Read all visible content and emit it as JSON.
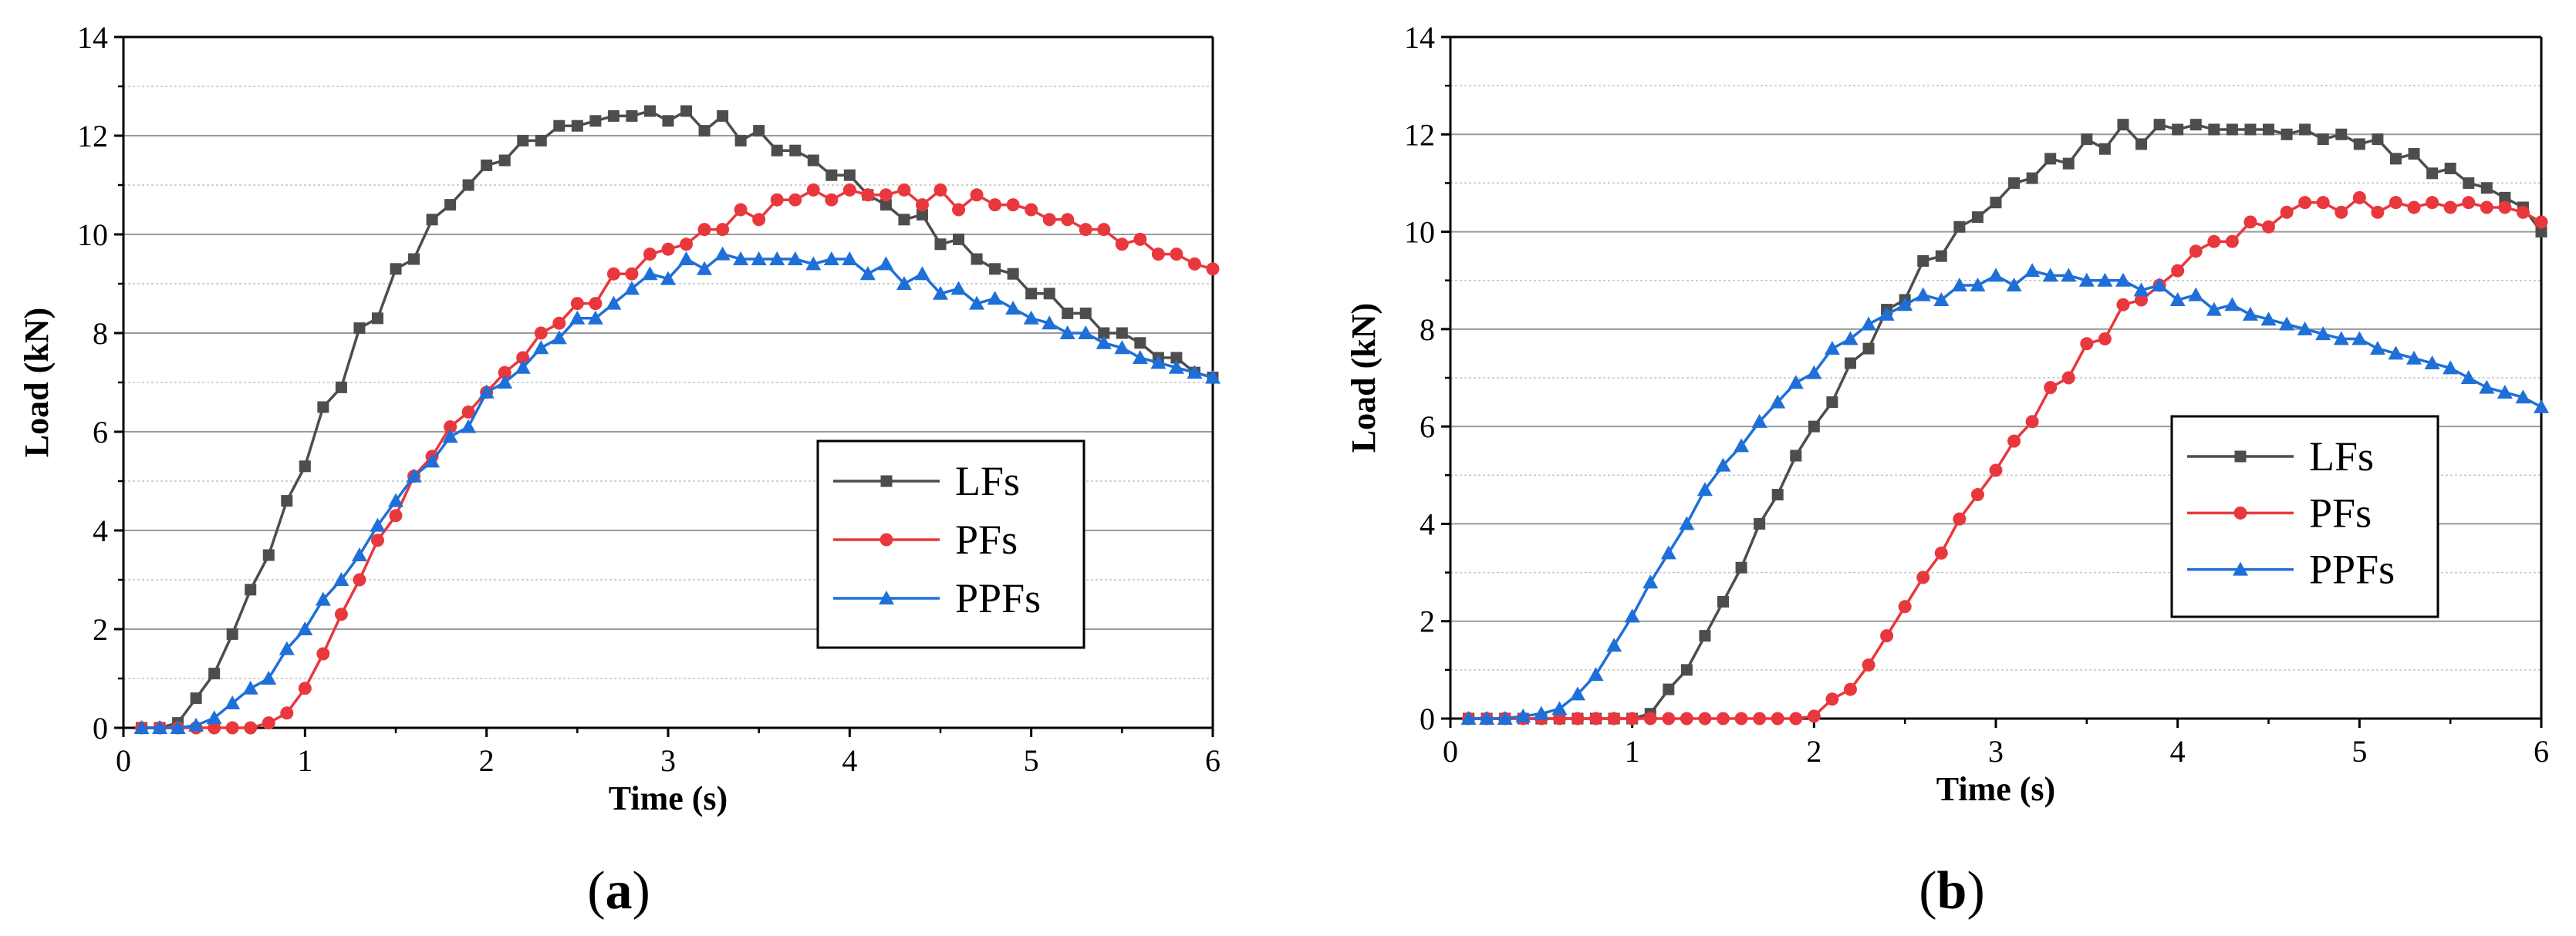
{
  "chart_data": [
    {
      "type": "line",
      "panel_label": "a",
      "xlabel": "Time (s)",
      "ylabel": "Load (kN)",
      "xlim": [
        0,
        6
      ],
      "ylim": [
        0,
        14
      ],
      "x_ticks": [
        "0",
        "1",
        "2",
        "3",
        "4",
        "5",
        "6"
      ],
      "y_ticks": [
        "0",
        "2",
        "4",
        "6",
        "8",
        "10",
        "12",
        "14"
      ],
      "grid": true,
      "legend_position": "center-right",
      "series": [
        {
          "name": "LFs",
          "color": "#4d4d4d",
          "marker": "square",
          "x": [
            0.1,
            0.2,
            0.3,
            0.4,
            0.5,
            0.6,
            0.7,
            0.8,
            0.9,
            1.0,
            1.1,
            1.2,
            1.3,
            1.4,
            1.5,
            1.6,
            1.7,
            1.8,
            1.9,
            2.0,
            2.1,
            2.2,
            2.3,
            2.4,
            2.5,
            2.6,
            2.7,
            2.8,
            2.9,
            3.0,
            3.1,
            3.2,
            3.3,
            3.4,
            3.5,
            3.6,
            3.7,
            3.8,
            3.9,
            4.0,
            4.1,
            4.2,
            4.3,
            4.4,
            4.5,
            4.6,
            4.7,
            4.8,
            4.9,
            5.0,
            5.1,
            5.2,
            5.3,
            5.4,
            5.5,
            5.6,
            5.7,
            5.8,
            5.9,
            6.0
          ],
          "y": [
            0,
            0,
            0.1,
            0.6,
            1.1,
            1.9,
            2.8,
            3.5,
            4.6,
            5.3,
            6.5,
            6.9,
            8.1,
            8.3,
            9.3,
            9.5,
            10.3,
            10.6,
            11.0,
            11.4,
            11.5,
            11.9,
            11.9,
            12.2,
            12.2,
            12.3,
            12.4,
            12.4,
            12.5,
            12.3,
            12.5,
            12.1,
            12.4,
            11.9,
            12.1,
            11.7,
            11.7,
            11.5,
            11.2,
            11.2,
            10.8,
            10.6,
            10.3,
            10.4,
            9.8,
            9.9,
            9.5,
            9.3,
            9.2,
            8.8,
            8.8,
            8.4,
            8.4,
            8.0,
            8.0,
            7.8,
            7.5,
            7.5,
            7.2,
            7.1
          ]
        },
        {
          "name": "PFs",
          "color": "#e8383d",
          "marker": "circle",
          "x": [
            0.1,
            0.2,
            0.3,
            0.4,
            0.5,
            0.6,
            0.7,
            0.8,
            0.9,
            1.0,
            1.1,
            1.2,
            1.3,
            1.4,
            1.5,
            1.6,
            1.7,
            1.8,
            1.9,
            2.0,
            2.1,
            2.2,
            2.3,
            2.4,
            2.5,
            2.6,
            2.7,
            2.8,
            2.9,
            3.0,
            3.1,
            3.2,
            3.3,
            3.4,
            3.5,
            3.6,
            3.7,
            3.8,
            3.9,
            4.0,
            4.1,
            4.2,
            4.3,
            4.4,
            4.5,
            4.6,
            4.7,
            4.8,
            4.9,
            5.0,
            5.1,
            5.2,
            5.3,
            5.4,
            5.5,
            5.6,
            5.7,
            5.8,
            5.9,
            6.0
          ],
          "y": [
            0,
            0,
            0,
            0,
            0,
            0,
            0,
            0.1,
            0.3,
            0.8,
            1.5,
            2.3,
            3.0,
            3.8,
            4.3,
            5.1,
            5.5,
            6.1,
            6.4,
            6.8,
            7.2,
            7.5,
            8.0,
            8.2,
            8.6,
            8.6,
            9.2,
            9.2,
            9.6,
            9.7,
            9.8,
            10.1,
            10.1,
            10.5,
            10.3,
            10.7,
            10.7,
            10.9,
            10.7,
            10.9,
            10.8,
            10.8,
            10.9,
            10.6,
            10.9,
            10.5,
            10.8,
            10.6,
            10.6,
            10.5,
            10.3,
            10.3,
            10.1,
            10.1,
            9.8,
            9.9,
            9.6,
            9.6,
            9.4,
            9.3
          ]
        },
        {
          "name": "PPFs",
          "color": "#1f6fd8",
          "marker": "triangle",
          "x": [
            0.1,
            0.2,
            0.3,
            0.4,
            0.5,
            0.6,
            0.7,
            0.8,
            0.9,
            1.0,
            1.1,
            1.2,
            1.3,
            1.4,
            1.5,
            1.6,
            1.7,
            1.8,
            1.9,
            2.0,
            2.1,
            2.2,
            2.3,
            2.4,
            2.5,
            2.6,
            2.7,
            2.8,
            2.9,
            3.0,
            3.1,
            3.2,
            3.3,
            3.4,
            3.5,
            3.6,
            3.7,
            3.8,
            3.9,
            4.0,
            4.1,
            4.2,
            4.3,
            4.4,
            4.5,
            4.6,
            4.7,
            4.8,
            4.9,
            5.0,
            5.1,
            5.2,
            5.3,
            5.4,
            5.5,
            5.6,
            5.7,
            5.8,
            5.9,
            6.0
          ],
          "y": [
            0,
            0,
            0,
            0.05,
            0.2,
            0.5,
            0.8,
            1.0,
            1.6,
            2.0,
            2.6,
            3.0,
            3.5,
            4.1,
            4.6,
            5.1,
            5.4,
            5.9,
            6.1,
            6.8,
            7.0,
            7.3,
            7.7,
            7.9,
            8.3,
            8.3,
            8.6,
            8.9,
            9.2,
            9.1,
            9.5,
            9.3,
            9.6,
            9.5,
            9.5,
            9.5,
            9.5,
            9.4,
            9.5,
            9.5,
            9.2,
            9.4,
            9.0,
            9.2,
            8.8,
            8.9,
            8.6,
            8.7,
            8.5,
            8.3,
            8.2,
            8.0,
            8.0,
            7.8,
            7.7,
            7.5,
            7.4,
            7.3,
            7.2,
            7.1
          ]
        }
      ]
    },
    {
      "type": "line",
      "panel_label": "b",
      "xlabel": "Time (s)",
      "ylabel": "Load (kN)",
      "xlim": [
        0,
        6
      ],
      "ylim": [
        0,
        14
      ],
      "x_ticks": [
        "0",
        "1",
        "2",
        "3",
        "4",
        "5",
        "6"
      ],
      "y_ticks": [
        "0",
        "2",
        "4",
        "6",
        "8",
        "10",
        "12",
        "14"
      ],
      "grid": true,
      "legend_position": "center-right",
      "series": [
        {
          "name": "LFs",
          "color": "#4d4d4d",
          "marker": "square",
          "x": [
            0.1,
            0.2,
            0.3,
            0.4,
            0.5,
            0.6,
            0.7,
            0.8,
            0.9,
            1.0,
            1.1,
            1.2,
            1.3,
            1.4,
            1.5,
            1.6,
            1.7,
            1.8,
            1.9,
            2.0,
            2.1,
            2.2,
            2.3,
            2.4,
            2.5,
            2.6,
            2.7,
            2.8,
            2.9,
            3.0,
            3.1,
            3.2,
            3.3,
            3.4,
            3.5,
            3.6,
            3.7,
            3.8,
            3.9,
            4.0,
            4.1,
            4.2,
            4.3,
            4.4,
            4.5,
            4.6,
            4.7,
            4.8,
            4.9,
            5.0,
            5.1,
            5.2,
            5.3,
            5.4,
            5.5,
            5.6,
            5.7,
            5.8,
            5.9,
            6.0
          ],
          "y": [
            0,
            0,
            0,
            0,
            0,
            0,
            0,
            0,
            0,
            0,
            0.1,
            0.6,
            1.0,
            1.7,
            2.4,
            3.1,
            4.0,
            4.6,
            5.4,
            6.0,
            6.5,
            7.3,
            7.6,
            8.4,
            8.6,
            9.4,
            9.5,
            10.1,
            10.3,
            10.6,
            11.0,
            11.1,
            11.5,
            11.4,
            11.9,
            11.7,
            12.2,
            11.8,
            12.2,
            12.1,
            12.2,
            12.1,
            12.1,
            12.1,
            12.1,
            12.0,
            12.1,
            11.9,
            12.0,
            11.8,
            11.9,
            11.5,
            11.6,
            11.2,
            11.3,
            11.0,
            10.9,
            10.7,
            10.5,
            10.0
          ]
        },
        {
          "name": "PFs",
          "color": "#e8383d",
          "marker": "circle",
          "x": [
            0.1,
            0.2,
            0.3,
            0.4,
            0.5,
            0.6,
            0.7,
            0.8,
            0.9,
            1.0,
            1.1,
            1.2,
            1.3,
            1.4,
            1.5,
            1.6,
            1.7,
            1.8,
            1.9,
            2.0,
            2.1,
            2.2,
            2.3,
            2.4,
            2.5,
            2.6,
            2.7,
            2.8,
            2.9,
            3.0,
            3.1,
            3.2,
            3.3,
            3.4,
            3.5,
            3.6,
            3.7,
            3.8,
            3.9,
            4.0,
            4.1,
            4.2,
            4.3,
            4.4,
            4.5,
            4.6,
            4.7,
            4.8,
            4.9,
            5.0,
            5.1,
            5.2,
            5.3,
            5.4,
            5.5,
            5.6,
            5.7,
            5.8,
            5.9,
            6.0
          ],
          "y": [
            0,
            0,
            0,
            0,
            0,
            0,
            0,
            0,
            0,
            0,
            0,
            0,
            0,
            0,
            0,
            0,
            0,
            0,
            0,
            0.05,
            0.4,
            0.6,
            1.1,
            1.7,
            2.3,
            2.9,
            3.4,
            4.1,
            4.6,
            5.1,
            5.7,
            6.1,
            6.8,
            7.0,
            7.7,
            7.8,
            8.5,
            8.6,
            8.9,
            9.2,
            9.6,
            9.8,
            9.8,
            10.2,
            10.1,
            10.4,
            10.6,
            10.6,
            10.4,
            10.7,
            10.4,
            10.6,
            10.5,
            10.6,
            10.5,
            10.6,
            10.5,
            10.5,
            10.4,
            10.2
          ]
        },
        {
          "name": "PPFs",
          "color": "#1f6fd8",
          "marker": "triangle",
          "x": [
            0.1,
            0.2,
            0.3,
            0.4,
            0.5,
            0.6,
            0.7,
            0.8,
            0.9,
            1.0,
            1.1,
            1.2,
            1.3,
            1.4,
            1.5,
            1.6,
            1.7,
            1.8,
            1.9,
            2.0,
            2.1,
            2.2,
            2.3,
            2.4,
            2.5,
            2.6,
            2.7,
            2.8,
            2.9,
            3.0,
            3.1,
            3.2,
            3.3,
            3.4,
            3.5,
            3.6,
            3.7,
            3.8,
            3.9,
            4.0,
            4.1,
            4.2,
            4.3,
            4.4,
            4.5,
            4.6,
            4.7,
            4.8,
            4.9,
            5.0,
            5.1,
            5.2,
            5.3,
            5.4,
            5.5,
            5.6,
            5.7,
            5.8,
            5.9,
            6.0
          ],
          "y": [
            0,
            0,
            0,
            0.05,
            0.1,
            0.2,
            0.5,
            0.9,
            1.5,
            2.1,
            2.8,
            3.4,
            4.0,
            4.7,
            5.2,
            5.6,
            6.1,
            6.5,
            6.9,
            7.1,
            7.6,
            7.8,
            8.1,
            8.3,
            8.5,
            8.7,
            8.6,
            8.9,
            8.9,
            9.1,
            8.9,
            9.2,
            9.1,
            9.1,
            9.0,
            9.0,
            9.0,
            8.8,
            8.9,
            8.6,
            8.7,
            8.4,
            8.5,
            8.3,
            8.2,
            8.1,
            8.0,
            7.9,
            7.8,
            7.8,
            7.6,
            7.5,
            7.4,
            7.3,
            7.2,
            7.0,
            6.8,
            6.7,
            6.6,
            6.4
          ]
        }
      ]
    }
  ]
}
